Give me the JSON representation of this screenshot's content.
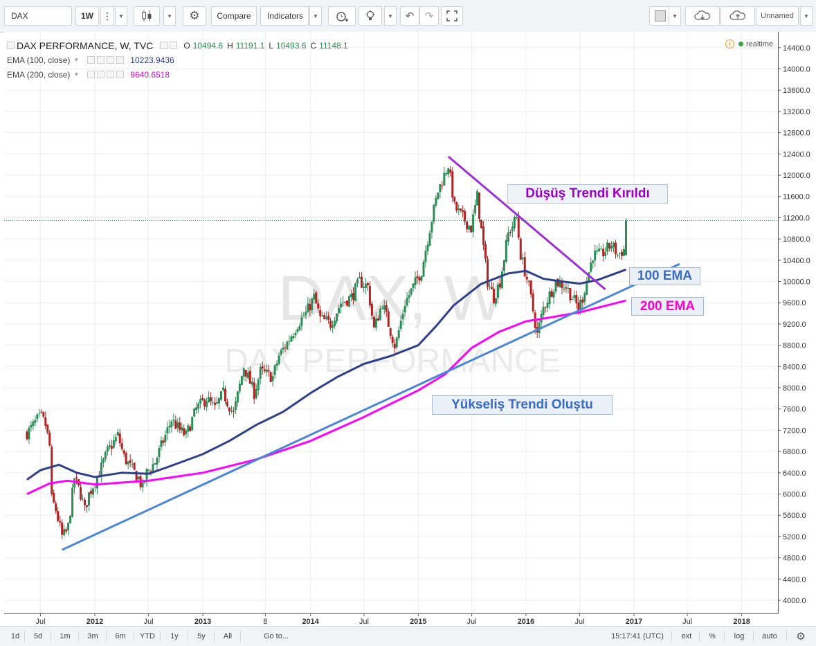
{
  "toolbar": {
    "symbol": "DAX",
    "interval": "1W",
    "compare_label": "Compare",
    "indicators_label": "Indicators",
    "layout_name": "Unnamed"
  },
  "legend": {
    "title": "DAX PERFORMANCE, W, TVC",
    "o_label": "O",
    "o_value": "10494.6",
    "h_label": "H",
    "h_value": "11191.1",
    "l_label": "L",
    "l_value": "10493.6",
    "c_label": "C",
    "c_value": "11148.1",
    "ema100_label": "EMA (100, close)",
    "ema100_value": "10223.9436",
    "ema200_label": "EMA (200, close)",
    "ema200_value": "9640.6518",
    "realtime": "realtime"
  },
  "watermark": {
    "big": "DAX, W",
    "small": "DAX PERFORMANCE"
  },
  "annotations": {
    "downtrend": "Düşüş Trendi Kırıldı",
    "ema100": "100 EMA",
    "ema200": "200 EMA",
    "uptrend": "Yükseliş Trendi Oluştu"
  },
  "bottombar": {
    "ranges": [
      "1d",
      "5d",
      "1m",
      "3m",
      "6m",
      "YTD",
      "1y",
      "5y",
      "All"
    ],
    "goto": "Go to...",
    "clock": "15:17:41 (UTC)",
    "ext": "ext",
    "pct": "%",
    "log": "log",
    "auto": "auto"
  },
  "colors": {
    "up": "#2e8b57",
    "down": "#b22222",
    "ema100": "#2f3f8a",
    "ema200": "#ff00ff",
    "downtrend_line": "#9b2fd8",
    "uptrend_line": "#4a86d8",
    "downtrend_text": "#9b00c8",
    "ema100_text": "#3b6bc4",
    "ema200_text": "#ff00cc",
    "uptrend_text": "#3b6bc4"
  },
  "chart_data": {
    "type": "candlestick",
    "title": "DAX PERFORMANCE, W, TVC",
    "ylim": [
      3700,
      14700
    ],
    "yticks": [
      4000,
      4400,
      4800,
      5200,
      5600,
      6000,
      6400,
      6800,
      7200,
      7600,
      8000,
      8400,
      8800,
      9200,
      9600,
      10000,
      10400,
      10800,
      11200,
      11600,
      12000,
      12400,
      12800,
      13200,
      13600,
      14000,
      14400
    ],
    "xlim": [
      "2011-05-16",
      "2018-07-01"
    ],
    "xticks": [
      {
        "date": "2011-07-01",
        "label": "Jul",
        "bold": false
      },
      {
        "date": "2012-01-01",
        "label": "2012",
        "bold": true
      },
      {
        "date": "2012-07-01",
        "label": "Jul",
        "bold": false
      },
      {
        "date": "2013-01-01",
        "label": "2013",
        "bold": true
      },
      {
        "date": "2013-08-01",
        "label": "8",
        "bold": false
      },
      {
        "date": "2014-01-01",
        "label": "2014",
        "bold": true
      },
      {
        "date": "2014-07-01",
        "label": "Jul",
        "bold": false
      },
      {
        "date": "2015-01-01",
        "label": "2015",
        "bold": true
      },
      {
        "date": "2015-07-01",
        "label": "Jul",
        "bold": false
      },
      {
        "date": "2016-01-01",
        "label": "2016",
        "bold": true
      },
      {
        "date": "2016-07-01",
        "label": "Jul",
        "bold": false
      },
      {
        "date": "2017-01-01",
        "label": "2017",
        "bold": true
      },
      {
        "date": "2017-07-01",
        "label": "Jul",
        "bold": false
      },
      {
        "date": "2018-01-01",
        "label": "2018",
        "bold": true
      }
    ],
    "last_price": 11148.1,
    "last_price_label": "11148.1",
    "close_series": {
      "name": "DAX weekly close",
      "points": [
        [
          "2011-05-16",
          7150
        ],
        [
          "2011-06-01",
          7250
        ],
        [
          "2011-06-20",
          7400
        ],
        [
          "2011-07-04",
          7450
        ],
        [
          "2011-07-18",
          7300
        ],
        [
          "2011-08-01",
          6900
        ],
        [
          "2011-08-08",
          5900
        ],
        [
          "2011-08-22",
          5700
        ],
        [
          "2011-09-12",
          5200
        ],
        [
          "2011-10-01",
          5300
        ],
        [
          "2011-10-24",
          6300
        ],
        [
          "2011-11-14",
          6000
        ],
        [
          "2011-11-28",
          5700
        ],
        [
          "2011-12-12",
          6000
        ],
        [
          "2012-01-16",
          6400
        ],
        [
          "2012-02-13",
          6800
        ],
        [
          "2012-03-19",
          7100
        ],
        [
          "2012-04-09",
          6700
        ],
        [
          "2012-05-01",
          6500
        ],
        [
          "2012-05-28",
          6300
        ],
        [
          "2012-06-11",
          6100
        ],
        [
          "2012-06-25",
          6400
        ],
        [
          "2012-07-23",
          6600
        ],
        [
          "2012-08-20",
          7000
        ],
        [
          "2012-09-17",
          7400
        ],
        [
          "2012-10-15",
          7200
        ],
        [
          "2012-11-05",
          7100
        ],
        [
          "2012-12-10",
          7600
        ],
        [
          "2013-01-14",
          7800
        ],
        [
          "2013-02-11",
          7600
        ],
        [
          "2013-03-11",
          7900
        ],
        [
          "2013-04-15",
          7500
        ],
        [
          "2013-05-20",
          8400
        ],
        [
          "2013-06-24",
          7900
        ],
        [
          "2013-07-15",
          8300
        ],
        [
          "2013-08-26",
          8200
        ],
        [
          "2013-09-16",
          8600
        ],
        [
          "2013-10-14",
          8850
        ],
        [
          "2013-11-18",
          9200
        ],
        [
          "2013-12-16",
          9400
        ],
        [
          "2014-01-13",
          9700
        ],
        [
          "2014-02-03",
          9300
        ],
        [
          "2014-03-10",
          9200
        ],
        [
          "2014-04-14",
          9600
        ],
        [
          "2014-05-19",
          9700
        ],
        [
          "2014-06-16",
          10000
        ],
        [
          "2014-07-14",
          9900
        ],
        [
          "2014-08-04",
          9100
        ],
        [
          "2014-09-01",
          9600
        ],
        [
          "2014-10-13",
          8800
        ],
        [
          "2014-10-20",
          8900
        ],
        [
          "2014-11-17",
          9600
        ],
        [
          "2014-12-15",
          9900
        ],
        [
          "2015-01-12",
          10200
        ],
        [
          "2015-02-09",
          11000
        ],
        [
          "2015-03-09",
          11700
        ],
        [
          "2015-04-13",
          12200
        ],
        [
          "2015-05-04",
          11400
        ],
        [
          "2015-06-01",
          11200
        ],
        [
          "2015-06-29",
          11000
        ],
        [
          "2015-07-20",
          11600
        ],
        [
          "2015-08-24",
          10000
        ],
        [
          "2015-09-14",
          9700
        ],
        [
          "2015-10-05",
          10000
        ],
        [
          "2015-11-02",
          10900
        ],
        [
          "2015-11-30",
          11200
        ],
        [
          "2015-12-14",
          10500
        ],
        [
          "2016-01-11",
          9900
        ],
        [
          "2016-02-08",
          9000
        ],
        [
          "2016-02-29",
          9500
        ],
        [
          "2016-04-11",
          10000
        ],
        [
          "2016-05-16",
          9900
        ],
        [
          "2016-06-27",
          9500
        ],
        [
          "2016-07-11",
          9700
        ],
        [
          "2016-08-15",
          10500
        ],
        [
          "2016-09-12",
          10500
        ],
        [
          "2016-10-17",
          10700
        ],
        [
          "2016-11-07",
          10500
        ],
        [
          "2016-11-28",
          10600
        ],
        [
          "2016-12-05",
          11148.1
        ]
      ]
    },
    "ema100": {
      "name": "EMA (100, close)",
      "points": [
        [
          "2011-05-16",
          6270
        ],
        [
          "2011-07-01",
          6450
        ],
        [
          "2011-09-01",
          6550
        ],
        [
          "2011-11-01",
          6400
        ],
        [
          "2012-01-01",
          6320
        ],
        [
          "2012-04-01",
          6400
        ],
        [
          "2012-07-01",
          6380
        ],
        [
          "2012-09-01",
          6500
        ],
        [
          "2013-01-01",
          6750
        ],
        [
          "2013-04-01",
          7000
        ],
        [
          "2013-07-01",
          7300
        ],
        [
          "2013-10-01",
          7550
        ],
        [
          "2014-01-01",
          7900
        ],
        [
          "2014-04-01",
          8200
        ],
        [
          "2014-07-01",
          8450
        ],
        [
          "2014-10-01",
          8600
        ],
        [
          "2015-01-01",
          8800
        ],
        [
          "2015-03-01",
          9150
        ],
        [
          "2015-05-01",
          9550
        ],
        [
          "2015-08-01",
          9950
        ],
        [
          "2015-11-01",
          10150
        ],
        [
          "2016-01-01",
          10200
        ],
        [
          "2016-03-01",
          10050
        ],
        [
          "2016-05-01",
          10000
        ],
        [
          "2016-07-01",
          9960
        ],
        [
          "2016-09-01",
          10030
        ],
        [
          "2016-12-05",
          10223.9436
        ]
      ]
    },
    "ema200": {
      "name": "EMA (200, close)",
      "points": [
        [
          "2011-05-16",
          6000
        ],
        [
          "2011-08-01",
          6200
        ],
        [
          "2011-10-01",
          6250
        ],
        [
          "2012-01-01",
          6180
        ],
        [
          "2012-07-01",
          6250
        ],
        [
          "2013-01-01",
          6400
        ],
        [
          "2013-07-01",
          6650
        ],
        [
          "2014-01-01",
          7000
        ],
        [
          "2014-07-01",
          7450
        ],
        [
          "2014-10-01",
          7700
        ],
        [
          "2015-01-01",
          7950
        ],
        [
          "2015-04-01",
          8250
        ],
        [
          "2015-07-01",
          8750
        ],
        [
          "2015-10-01",
          9050
        ],
        [
          "2016-01-01",
          9250
        ],
        [
          "2016-04-01",
          9330
        ],
        [
          "2016-07-01",
          9420
        ],
        [
          "2016-12-05",
          9640.6518
        ]
      ]
    },
    "trendlines": [
      {
        "label": "Düşüş Trendi Kırıldı",
        "from": [
          "2015-04-13",
          12350
        ],
        "to": [
          "2016-09-26",
          9850
        ]
      },
      {
        "label": "Yükseliş Trendi Oluştu",
        "from": [
          "2011-09-12",
          4950
        ],
        "to": [
          "2017-06-05",
          10330
        ]
      }
    ]
  }
}
